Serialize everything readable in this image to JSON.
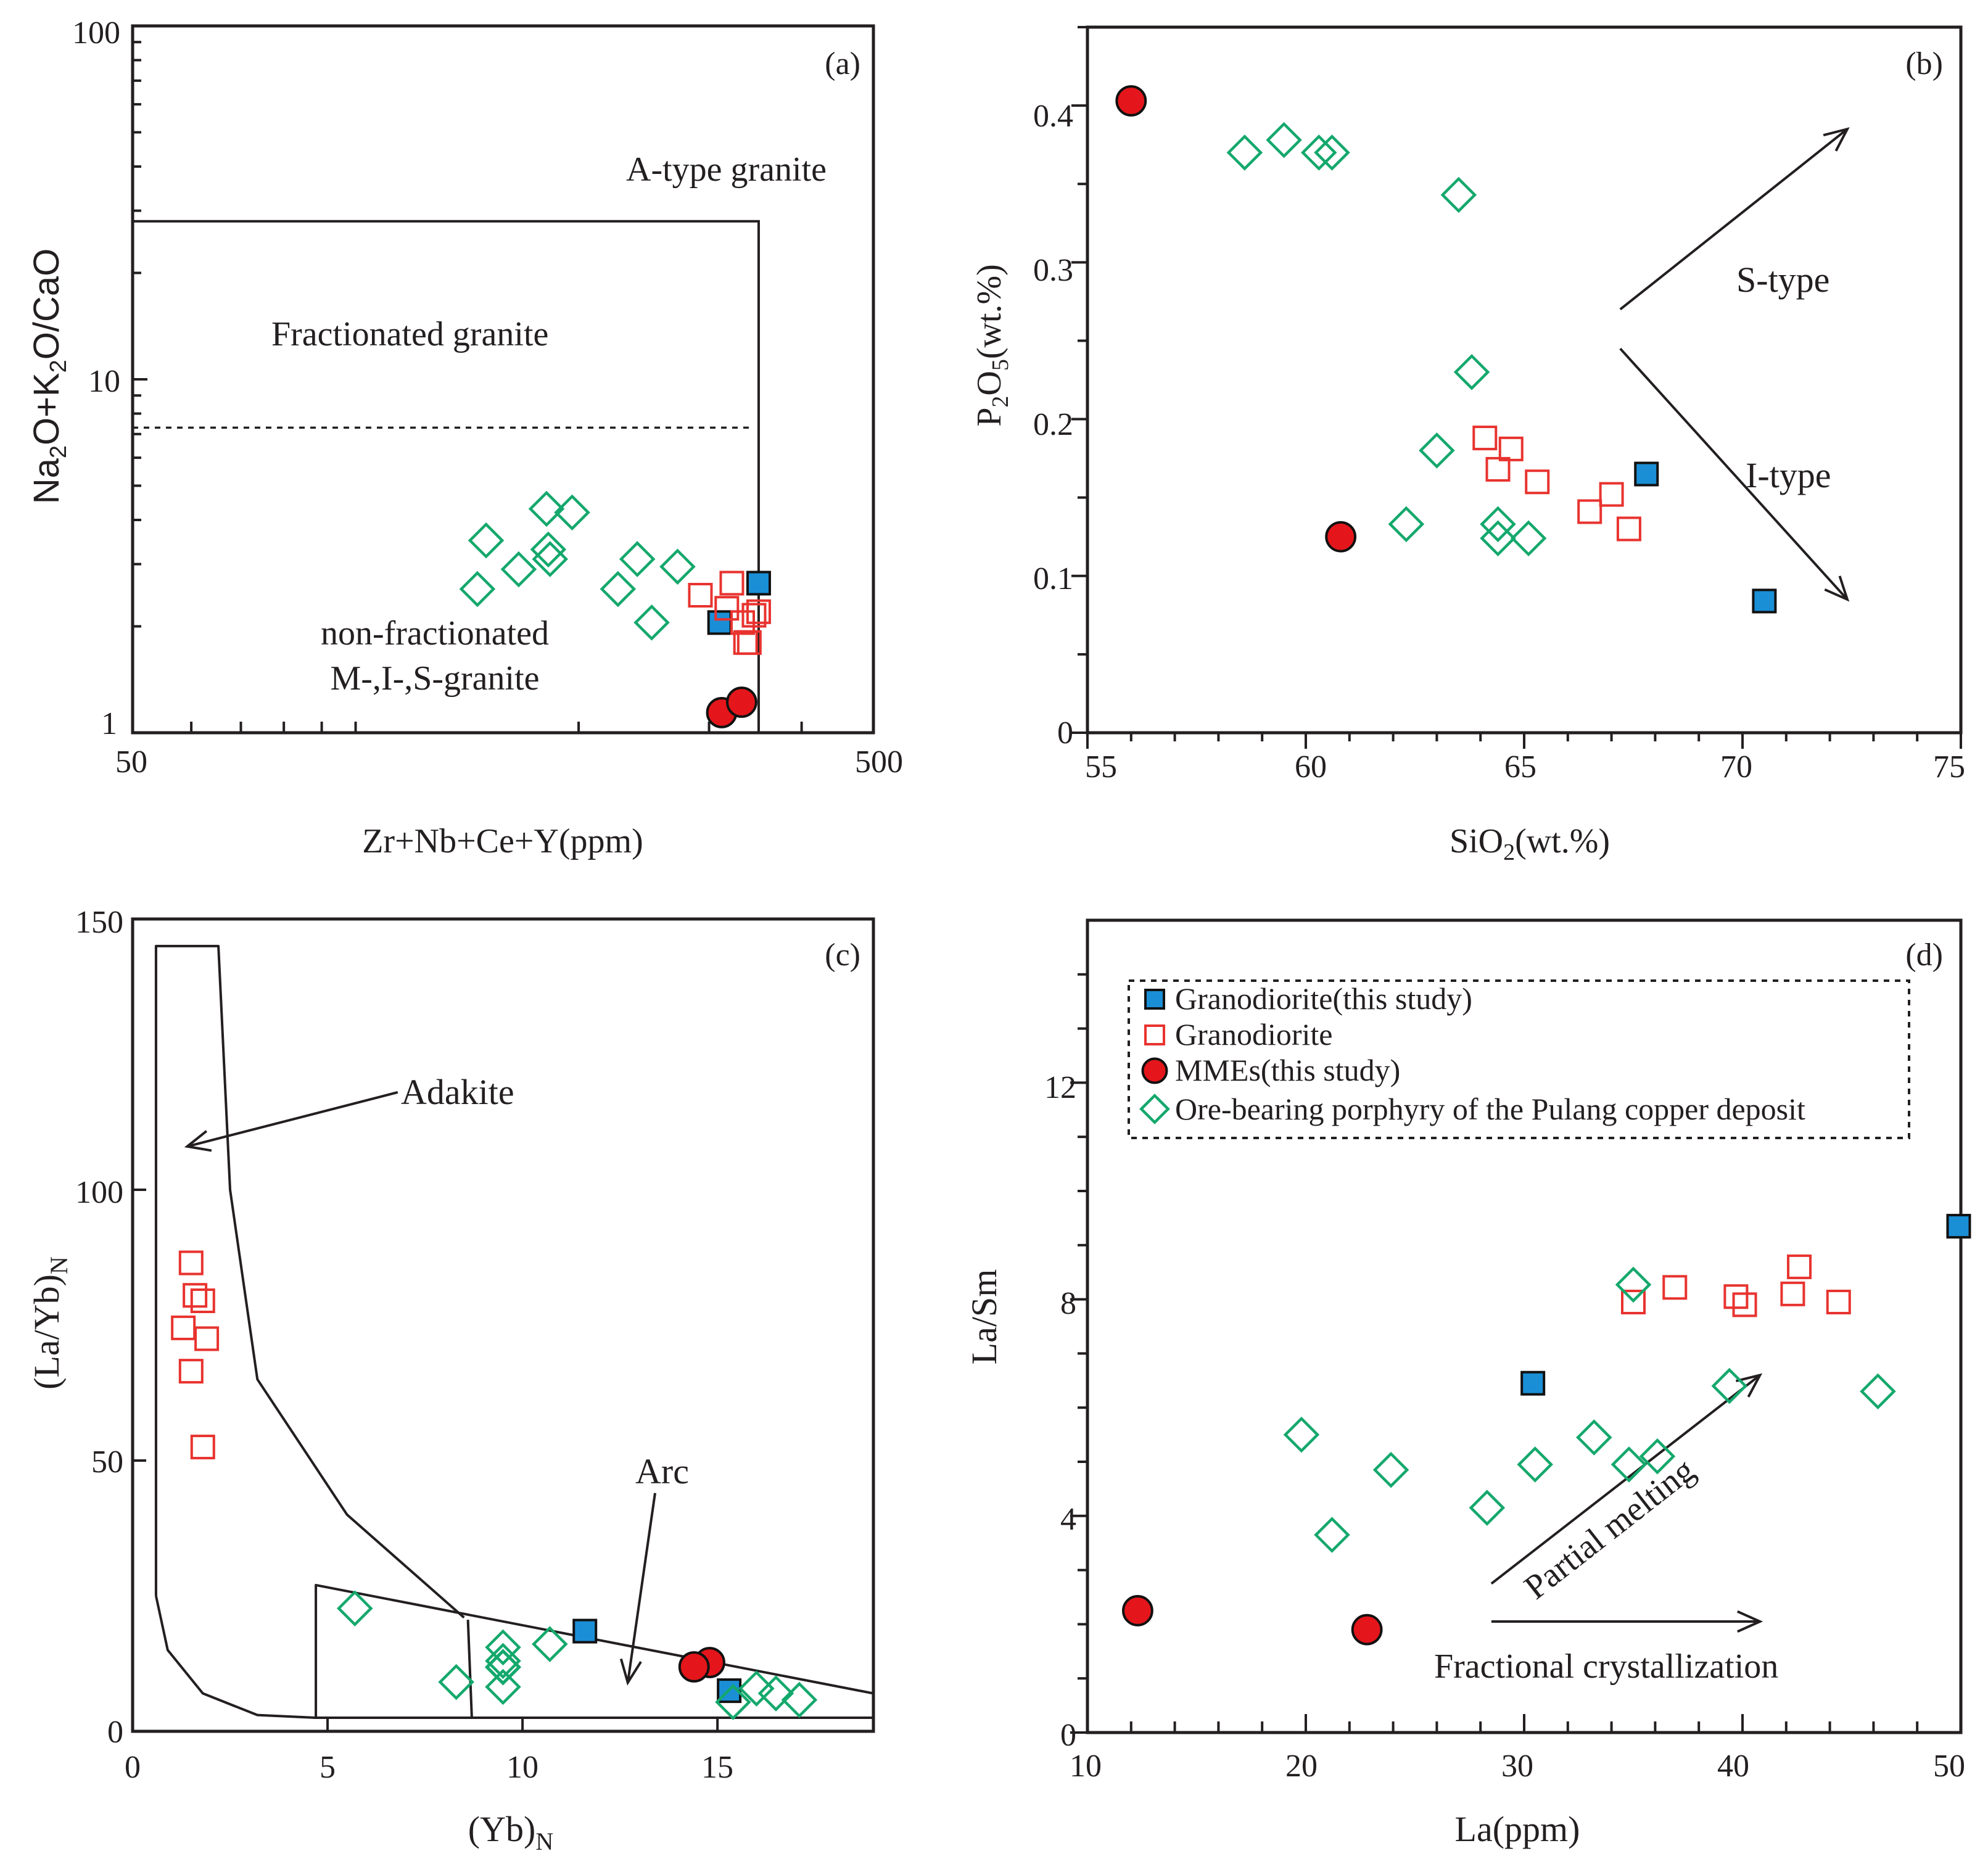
{
  "figure": {
    "legend": {
      "entries": [
        {
          "key": "granodiorite_this_study",
          "label": "Granodiorite(this study)",
          "marker": "square-filled",
          "fill": "#1a8fd6",
          "stroke": "#111111"
        },
        {
          "key": "granodiorite",
          "label": "Granodiorite",
          "marker": "square-open",
          "fill": "none",
          "stroke": "#e8332f"
        },
        {
          "key": "mmes",
          "label": "MMEs(this study)",
          "marker": "circle-filled",
          "fill": "#e4161b",
          "stroke": "#111111"
        },
        {
          "key": "porphyry",
          "label": "Ore-bearing porphyry of the Pulang copper deposit",
          "marker": "diamond-open",
          "fill": "none",
          "stroke": "#14a86c"
        }
      ]
    }
  },
  "chart_data": [
    {
      "panel": "a",
      "panel_label": "(a)",
      "type": "scatter",
      "xscale": "log",
      "yscale": "log",
      "xlim": [
        50,
        500
      ],
      "ylim": [
        1,
        100
      ],
      "xlabel": "Zr+Nb+Ce+Y(ppm)",
      "ylabel": "Na2O+K2O/CaO",
      "xticks": [
        "50",
        "500"
      ],
      "yticks": [
        "1",
        "10",
        "100"
      ],
      "field_labels": {
        "atype": "A-type granite",
        "fract": "Fractionated granite",
        "nonfract1": "non-fractionated",
        "nonfract2": "M-,I-,S-granite"
      },
      "boundaries": [
        {
          "style": "solid",
          "points": [
            [
              50,
              28
            ],
            [
              350,
              28
            ],
            [
              350,
              1
            ]
          ]
        },
        {
          "style": "dashed",
          "points": [
            [
              50,
              7.3
            ],
            [
              345,
              7.3
            ]
          ]
        }
      ],
      "series": [
        {
          "key": "granodiorite_this_study",
          "x": [
            310,
            350
          ],
          "y": [
            2.05,
            2.65
          ]
        },
        {
          "key": "granodiorite",
          "x": [
            292,
            322,
            333,
            317,
            336,
            345,
            340,
            350
          ],
          "y": [
            2.45,
            2.65,
            2.05,
            2.25,
            1.8,
            2.15,
            1.8,
            2.2
          ]
        },
        {
          "key": "mmes",
          "x": [
            312,
            332
          ],
          "y": [
            1.14,
            1.22
          ]
        },
        {
          "key": "porphyry",
          "x": [
            146,
            150,
            166,
            183,
            182,
            181,
            196,
            226,
            240,
            251,
            272
          ],
          "y": [
            2.55,
            3.5,
            2.9,
            3.1,
            3.3,
            4.3,
            4.2,
            2.55,
            3.1,
            2.05,
            2.95
          ]
        }
      ]
    },
    {
      "panel": "b",
      "panel_label": "(b)",
      "type": "scatter",
      "xlim": [
        55,
        75
      ],
      "ylim": [
        0,
        0.45
      ],
      "xlabel": "SiO2(wt.%)",
      "ylabel": "P2O5(wt.%)",
      "xticks": [
        "55",
        "60",
        "65",
        "70",
        "75"
      ],
      "yticks": [
        "0",
        "0.1",
        "0.2",
        "0.3",
        "0.4"
      ],
      "trend_labels": {
        "s_type": "S-type",
        "i_type": "I-type"
      },
      "trends": [
        {
          "from": [
            67.2,
            0.27
          ],
          "to": [
            72.4,
            0.385
          ]
        },
        {
          "from": [
            67.2,
            0.245
          ],
          "to": [
            72.4,
            0.085
          ]
        }
      ],
      "series": [
        {
          "key": "granodiorite_this_study",
          "x": [
            67.8,
            70.5
          ],
          "y": [
            0.165,
            0.084
          ]
        },
        {
          "key": "granodiorite",
          "x": [
            64.1,
            64.4,
            64.7,
            65.3,
            66.5,
            67.0,
            67.4
          ],
          "y": [
            0.188,
            0.168,
            0.181,
            0.16,
            0.141,
            0.152,
            0.13
          ]
        },
        {
          "key": "mmes",
          "x": [
            56.0,
            60.8
          ],
          "y": [
            0.403,
            0.125
          ]
        },
        {
          "key": "porphyry",
          "x": [
            58.6,
            59.5,
            60.3,
            60.6,
            63.5,
            63.8,
            63.0,
            62.3,
            64.4,
            64.4,
            65.1
          ],
          "y": [
            0.37,
            0.378,
            0.37,
            0.37,
            0.343,
            0.23,
            0.18,
            0.133,
            0.133,
            0.124,
            0.124
          ]
        }
      ]
    },
    {
      "panel": "c",
      "panel_label": "(c)",
      "type": "scatter",
      "xlim": [
        0,
        19
      ],
      "ylim": [
        0,
        150
      ],
      "xlabel": "(Yb)N",
      "ylabel": "(La/Yb)N",
      "xticks": [
        "0",
        "5",
        "10",
        "15"
      ],
      "yticks": [
        "0",
        "50",
        "100",
        "150"
      ],
      "field_labels": {
        "adakite": "Adakite",
        "arc": "Arc"
      },
      "arrows": [
        {
          "from": [
            6.8,
            118
          ],
          "to": [
            1.4,
            108
          ]
        },
        {
          "from": [
            13.4,
            44
          ],
          "to": [
            12.7,
            9
          ]
        }
      ],
      "boundaries": [
        {
          "style": "solid",
          "points": [
            [
              0.6,
              25
            ],
            [
              0.6,
              145
            ],
            [
              2.2,
              145
            ],
            [
              2.5,
              100
            ],
            [
              3.2,
              65
            ],
            [
              5.5,
              40
            ],
            [
              8.5,
              21
            ]
          ]
        },
        {
          "style": "solid",
          "points": [
            [
              0.6,
              25
            ],
            [
              0.9,
              15
            ],
            [
              1.8,
              7
            ],
            [
              3.2,
              3
            ],
            [
              4.7,
              2.5
            ],
            [
              19,
              2.5
            ]
          ]
        },
        {
          "style": "solid",
          "points": [
            [
              4.7,
              2.5
            ],
            [
              4.7,
              27
            ],
            [
              19,
              7
            ]
          ]
        },
        {
          "style": "solid",
          "points": [
            [
              8.6,
              20.6
            ],
            [
              8.7,
              2.5
            ]
          ]
        }
      ],
      "series": [
        {
          "key": "granodiorite_this_study",
          "x": [
            11.6,
            15.3
          ],
          "y": [
            18.5,
            7.5
          ]
        },
        {
          "key": "granodiorite",
          "x": [
            1.5,
            1.6,
            1.8,
            1.3,
            1.9,
            1.5,
            1.8
          ],
          "y": [
            86.5,
            80.5,
            79.5,
            74.5,
            72.5,
            66.5,
            52.5
          ]
        },
        {
          "key": "mmes",
          "x": [
            14.8,
            14.4
          ],
          "y": [
            12.7,
            11.9
          ]
        },
        {
          "key": "porphyry",
          "x": [
            5.7,
            8.3,
            9.5,
            9.5,
            9.5,
            9.5,
            9.5,
            10.7,
            15.4,
            16.0,
            16.5,
            17.1
          ],
          "y": [
            22.7,
            9.1,
            15.5,
            13.0,
            11.8,
            11.9,
            8.2,
            16.1,
            5.4,
            7.9,
            7.0,
            5.8
          ]
        }
      ]
    },
    {
      "panel": "d",
      "panel_label": "(d)",
      "type": "scatter",
      "xlim": [
        10,
        50
      ],
      "ylim": [
        0,
        15
      ],
      "xlabel": "La(ppm)",
      "ylabel": "La/Sm",
      "xticks": [
        "10",
        "20",
        "30",
        "40",
        "50"
      ],
      "yticks": [
        "0",
        "4",
        "8",
        "12"
      ],
      "trend_labels": {
        "partial": "Partial melting",
        "fractional": "Fractional crystallization"
      },
      "trends": [
        {
          "from": [
            28.5,
            2.75
          ],
          "to": [
            40.8,
            6.6
          ]
        },
        {
          "from": [
            28.5,
            2.05
          ],
          "to": [
            40.8,
            2.05
          ]
        }
      ],
      "series": [
        {
          "key": "granodiorite_this_study",
          "x": [
            30.4,
            49.9
          ],
          "y": [
            6.45,
            9.35
          ]
        },
        {
          "key": "granodiorite",
          "x": [
            35.0,
            36.9,
            39.7,
            40.1,
            42.3,
            42.6,
            44.4
          ],
          "y": [
            7.95,
            8.22,
            8.05,
            7.9,
            8.1,
            8.6,
            7.95
          ]
        },
        {
          "key": "mmes",
          "x": [
            12.3,
            22.8
          ],
          "y": [
            2.25,
            1.9
          ]
        },
        {
          "key": "porphyry",
          "x": [
            19.8,
            21.2,
            23.9,
            28.3,
            30.5,
            33.2,
            34.8,
            35.0,
            36.1,
            39.4,
            46.2
          ],
          "y": [
            5.5,
            3.65,
            4.85,
            4.15,
            4.95,
            5.45,
            4.95,
            8.27,
            5.1,
            6.4,
            6.3
          ]
        }
      ]
    }
  ]
}
